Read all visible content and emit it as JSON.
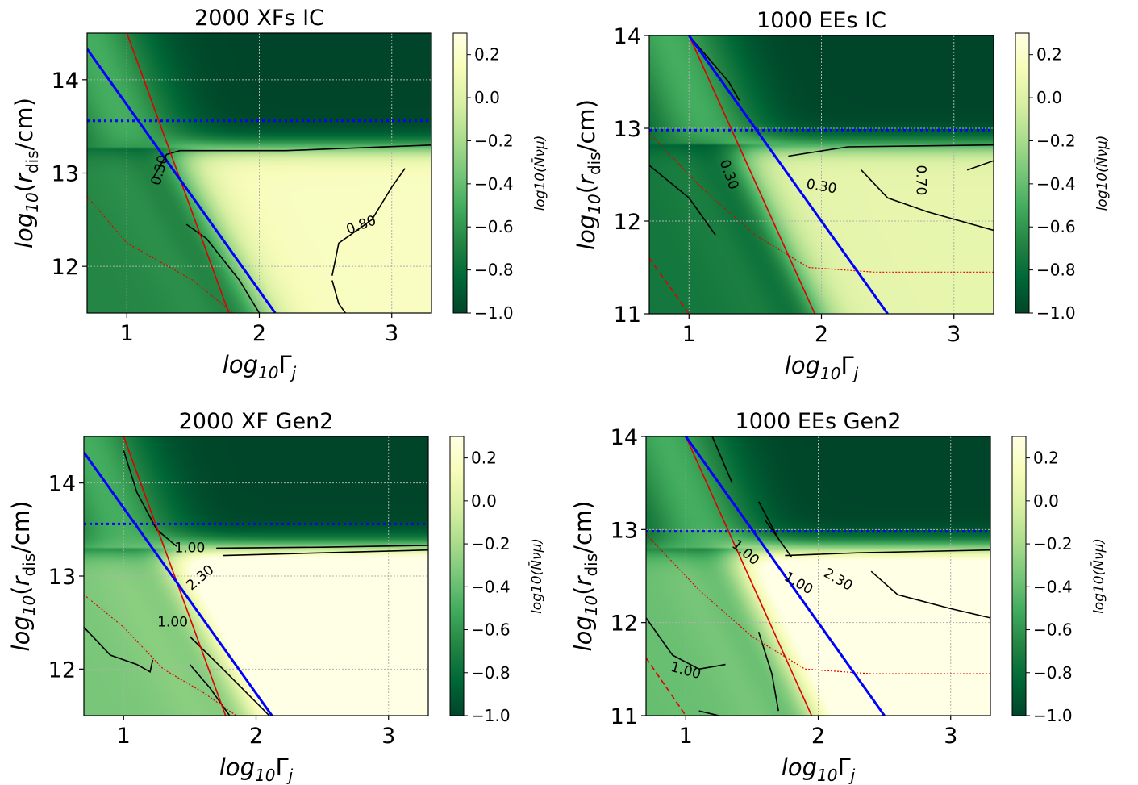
{
  "figure": {
    "colorscale": [
      "#004529",
      "#006837",
      "#238443",
      "#41ab5d",
      "#78c679",
      "#addd8e",
      "#d9f0a3",
      "#f7fcb9",
      "#ffffe5"
    ],
    "colors": {
      "model_line": "#0000ff",
      "red_line": "#e00000",
      "contour": "#000000"
    }
  },
  "chart_data": [
    {
      "type": "heatmap",
      "title": "2000 XFs IC",
      "xlabel": "log10Γj",
      "ylabel": "log10(rdis/cm)",
      "xlim": [
        0.7,
        3.3
      ],
      "ylim": [
        11.5,
        14.5
      ],
      "xticks": [
        1,
        2,
        3
      ],
      "yticks": [
        12,
        13,
        14
      ],
      "grid": true,
      "colorbar": {
        "label": "log10(N̄νμ)",
        "range": [
          -1.0,
          0.3
        ],
        "ticks": [
          "0.2",
          "0.0",
          "−0.2",
          "−0.4",
          "−0.6",
          "−0.8",
          "−1.0"
        ]
      },
      "field": {
        "base": -0.25,
        "gain": 0.42,
        "cutoff": 13.28,
        "diag_mid": 3.05,
        "diag_slope": 2.6
      },
      "blue_line": [
        [
          0.7,
          14.33
        ],
        [
          2.12,
          11.5
        ]
      ],
      "blue_dotted": 13.56,
      "red_line": [
        [
          1.0,
          14.5
        ],
        [
          1.77,
          11.5
        ]
      ],
      "red_dotted": [
        [
          0.7,
          12.75
        ],
        [
          1.0,
          12.25
        ],
        [
          1.5,
          11.85
        ],
        [
          1.8,
          11.5
        ]
      ],
      "contours": [
        {
          "label": "0.30",
          "points": [
            [
              1.2,
              12.95
            ],
            [
              1.3,
              13.2
            ],
            [
              1.4,
              13.24
            ],
            [
              2.2,
              13.24
            ],
            [
              3.3,
              13.3
            ]
          ]
        },
        {
          "label": "0.80",
          "points": [
            [
              2.55,
              11.9
            ],
            [
              2.6,
              12.25
            ],
            [
              2.85,
              12.5
            ],
            [
              3.0,
              12.85
            ],
            [
              3.1,
              13.05
            ]
          ]
        },
        {
          "label": "",
          "points": [
            [
              2.55,
              11.85
            ],
            [
              2.6,
              11.6
            ],
            [
              2.65,
              11.5
            ]
          ]
        },
        {
          "label": "",
          "points": [
            [
              1.45,
              12.45
            ],
            [
              1.6,
              12.3
            ],
            [
              1.85,
              11.85
            ],
            [
              2.0,
              11.5
            ]
          ]
        }
      ],
      "contour_labels": [
        {
          "text": "0.30",
          "x": 1.25,
          "y": 13.03,
          "angle": -75
        },
        {
          "text": "0.80",
          "x": 2.77,
          "y": 12.44,
          "angle": -20
        }
      ]
    },
    {
      "type": "heatmap",
      "title": "1000 EEs IC",
      "xlabel": "log10Γj",
      "ylabel": "log10(rdis/cm)",
      "xlim": [
        0.7,
        3.3
      ],
      "ylim": [
        11.0,
        14.0
      ],
      "xticks": [
        1,
        2,
        3
      ],
      "yticks": [
        11,
        12,
        13,
        14
      ],
      "grid": true,
      "colorbar": {
        "label": "log10(N̄νμ)",
        "range": [
          -1.0,
          0.3
        ],
        "ticks": [
          "0.2",
          "0.0",
          "−0.2",
          "−0.4",
          "−0.6",
          "−0.8",
          "−1.0"
        ]
      },
      "field": {
        "base": -0.35,
        "gain": 0.4,
        "cutoff": 12.82,
        "diag_mid": 3.2,
        "diag_slope": 2.8
      },
      "blue_line": [
        [
          1.0,
          14.0
        ],
        [
          2.5,
          11.0
        ]
      ],
      "blue_dotted": 12.98,
      "red_line": [
        [
          1.0,
          14.0
        ],
        [
          1.95,
          11.0
        ]
      ],
      "red_dotted": [
        [
          0.7,
          12.95
        ],
        [
          1.1,
          12.35
        ],
        [
          1.5,
          11.85
        ],
        [
          1.9,
          11.5
        ],
        [
          2.4,
          11.45
        ],
        [
          3.3,
          11.45
        ]
      ],
      "red_dashed": [
        [
          0.7,
          11.6
        ],
        [
          1.0,
          11.0
        ]
      ],
      "contours": [
        {
          "label": "",
          "points": [
            [
              1.0,
              14.0
            ],
            [
              1.3,
              13.5
            ],
            [
              1.38,
              13.3
            ]
          ]
        },
        {
          "label": "0.30",
          "points": [
            [
              0.7,
              12.6
            ],
            [
              1.0,
              12.25
            ],
            [
              1.2,
              11.85
            ]
          ]
        },
        {
          "label": "0.30",
          "points": [
            [
              1.75,
              12.7
            ],
            [
              2.2,
              12.8
            ],
            [
              3.3,
              12.82
            ]
          ]
        },
        {
          "label": "0.70",
          "points": [
            [
              3.1,
              12.55
            ],
            [
              3.3,
              12.65
            ]
          ]
        },
        {
          "label": "",
          "points": [
            [
              2.3,
              12.55
            ],
            [
              2.5,
              12.25
            ],
            [
              2.8,
              12.1
            ],
            [
              3.3,
              11.9
            ]
          ]
        }
      ],
      "contour_labels": [
        {
          "text": "0.30",
          "x": 1.3,
          "y": 12.5,
          "angle": 70
        },
        {
          "text": "0.30",
          "x": 2.0,
          "y": 12.37,
          "angle": 10
        },
        {
          "text": "0.70",
          "x": 2.75,
          "y": 12.44,
          "angle": 90
        }
      ]
    },
    {
      "type": "heatmap",
      "title": "2000 XF Gen2",
      "xlabel": "log10Γj",
      "ylabel": "log10(rdis/cm)",
      "xlim": [
        0.7,
        3.3
      ],
      "ylim": [
        11.5,
        14.5
      ],
      "xticks": [
        1,
        2,
        3
      ],
      "yticks": [
        12,
        13,
        14
      ],
      "grid": true,
      "colorbar": {
        "label": "log10(N̄νμ)",
        "range": [
          -1.0,
          0.3
        ],
        "ticks": [
          "0.2",
          "0.0",
          "−0.2",
          "−0.4",
          "−0.6",
          "−0.8",
          "−1.0"
        ]
      },
      "field": {
        "base": 0.15,
        "gain": 0.5,
        "cutoff": 13.3,
        "diag_mid": 3.05,
        "diag_slope": 2.6
      },
      "blue_line": [
        [
          0.7,
          14.33
        ],
        [
          2.12,
          11.5
        ]
      ],
      "blue_dotted": 13.56,
      "red_line": [
        [
          1.0,
          14.5
        ],
        [
          1.77,
          11.5
        ]
      ],
      "red_dotted": [
        [
          0.7,
          12.8
        ],
        [
          1.0,
          12.45
        ],
        [
          1.3,
          12.0
        ],
        [
          1.6,
          11.75
        ],
        [
          1.85,
          11.5
        ]
      ],
      "contours": [
        {
          "label": "1.00",
          "points": [
            [
              1.0,
              14.35
            ],
            [
              1.1,
              13.9
            ],
            [
              1.25,
              13.5
            ],
            [
              1.4,
              13.32
            ]
          ]
        },
        {
          "label": "1.00",
          "points": [
            [
              1.7,
              13.3
            ],
            [
              2.5,
              13.31
            ],
            [
              3.3,
              13.33
            ]
          ]
        },
        {
          "label": "2.30",
          "points": [
            [
              1.75,
              13.22
            ],
            [
              2.5,
              13.25
            ],
            [
              3.3,
              13.28
            ]
          ]
        },
        {
          "label": "",
          "points": [
            [
              0.7,
              12.45
            ],
            [
              0.9,
              12.15
            ],
            [
              1.1,
              12.05
            ],
            [
              1.2,
              11.97
            ],
            [
              1.22,
              12.1
            ]
          ]
        },
        {
          "label": "1.00",
          "points": [
            [
              1.5,
              12.35
            ],
            [
              1.75,
              12.0
            ],
            [
              2.1,
              11.5
            ]
          ]
        },
        {
          "label": "",
          "points": [
            [
              1.5,
              12.05
            ],
            [
              1.65,
              11.8
            ],
            [
              1.8,
              11.5
            ]
          ]
        }
      ],
      "contour_labels": [
        {
          "text": "1.00",
          "x": 1.5,
          "y": 13.3,
          "angle": 0
        },
        {
          "text": "2.30",
          "x": 1.58,
          "y": 12.98,
          "angle": -40
        },
        {
          "text": "1.00",
          "x": 1.37,
          "y": 12.5,
          "angle": 0
        }
      ]
    },
    {
      "type": "heatmap",
      "title": "1000 EEs Gen2",
      "xlabel": "log10Γj",
      "ylabel": "log10(rdis/cm)",
      "xlim": [
        0.7,
        3.3
      ],
      "ylim": [
        11.0,
        14.0
      ],
      "xticks": [
        1,
        2,
        3
      ],
      "yticks": [
        11,
        12,
        13,
        14
      ],
      "grid": true,
      "colorbar": {
        "label": "log10(N̄νμ)",
        "range": [
          -1.0,
          0.3
        ],
        "ticks": [
          "0.2",
          "0.0",
          "−0.2",
          "−0.4",
          "−0.6",
          "−0.8",
          "−1.0"
        ]
      },
      "field": {
        "base": 0.05,
        "gain": 0.45,
        "cutoff": 12.8,
        "diag_mid": 3.2,
        "diag_slope": 2.8
      },
      "blue_line": [
        [
          1.0,
          14.0
        ],
        [
          2.5,
          11.0
        ]
      ],
      "blue_dotted": 12.98,
      "red_line": [
        [
          1.0,
          14.0
        ],
        [
          1.95,
          11.0
        ]
      ],
      "red_dotted": [
        [
          0.7,
          12.95
        ],
        [
          1.1,
          12.35
        ],
        [
          1.5,
          11.85
        ],
        [
          1.9,
          11.5
        ],
        [
          2.4,
          11.45
        ],
        [
          3.3,
          11.45
        ]
      ],
      "red_dashed": [
        [
          0.7,
          11.62
        ],
        [
          1.0,
          11.0
        ]
      ],
      "contours": [
        {
          "label": "",
          "points": [
            [
              1.2,
              14.0
            ],
            [
              1.35,
              13.5
            ]
          ]
        },
        {
          "label": "1.00",
          "points": [
            [
              1.55,
              13.3
            ],
            [
              1.7,
              12.9
            ]
          ]
        },
        {
          "label": "",
          "points": [
            [
              1.6,
              13.1
            ],
            [
              1.8,
              12.7
            ]
          ]
        },
        {
          "label": "2.30",
          "points": [
            [
              1.75,
              12.72
            ],
            [
              2.3,
              12.75
            ],
            [
              3.3,
              12.78
            ]
          ]
        },
        {
          "label": "",
          "points": [
            [
              2.4,
              12.55
            ],
            [
              2.6,
              12.3
            ],
            [
              3.0,
              12.15
            ],
            [
              3.3,
              12.05
            ]
          ]
        },
        {
          "label": "1.00",
          "points": [
            [
              0.7,
              12.05
            ],
            [
              0.9,
              11.65
            ],
            [
              1.1,
              11.5
            ],
            [
              1.3,
              11.55
            ]
          ]
        },
        {
          "label": "",
          "points": [
            [
              1.55,
              11.9
            ],
            [
              1.65,
              11.45
            ],
            [
              1.7,
              11.05
            ]
          ]
        },
        {
          "label": "",
          "points": [
            [
              1.1,
              11.05
            ],
            [
              1.25,
              11.0
            ]
          ]
        }
      ],
      "contour_labels": [
        {
          "text": "1.00",
          "x": 1.45,
          "y": 12.75,
          "angle": 40
        },
        {
          "text": "1.00",
          "x": 1.85,
          "y": 12.42,
          "angle": 30
        },
        {
          "text": "2.30",
          "x": 2.15,
          "y": 12.46,
          "angle": 30
        },
        {
          "text": "1.00",
          "x": 1.0,
          "y": 11.48,
          "angle": 15
        }
      ]
    }
  ]
}
